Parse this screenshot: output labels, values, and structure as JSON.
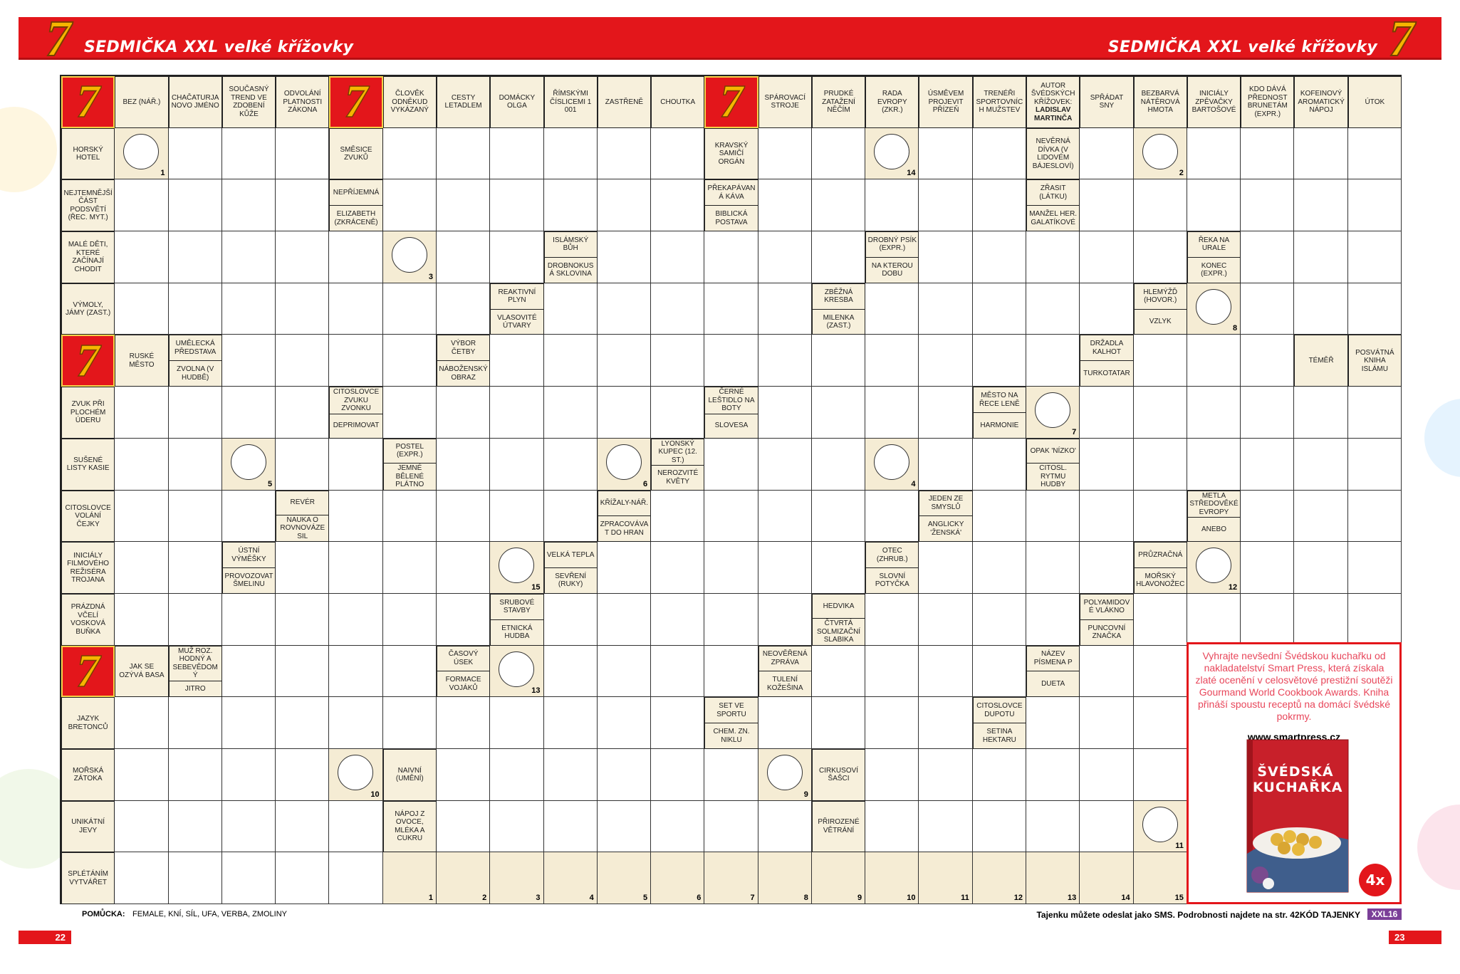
{
  "header": {
    "logo": "7",
    "title": "SEDMIČKA XXL velké křížovky"
  },
  "grid": {
    "rows": [
      [
        {
          "logo": "7"
        },
        {
          "clue": "BEZ (NÁŘ.)"
        },
        {
          "clue": "CHAČATURJANOVO JMÉNO"
        },
        {
          "clue": "SOUČASNÝ TREND VE ZDOBENÍ KŮŽE"
        },
        {
          "clue": "ODVOLÁNÍ PLATNOSTI ZÁKONA"
        },
        {
          "logo": "7"
        },
        {
          "clue": "ČLOVĚK ODNĚKUD VYKÁZANÝ"
        },
        {
          "clue": "CESTY LETADLEM"
        },
        {
          "clue": "DOMÁCKY OLGA"
        },
        {
          "clue": "ŘÍMSKÝMI ČÍSLICEMI 1 001"
        },
        {
          "clue": "ZASTŘENĚ"
        },
        {
          "clue": "CHOUTKA"
        },
        {
          "logo": "7"
        },
        {
          "clue": "SPÁROVACÍ STROJE"
        },
        {
          "clue": "PRUDKÉ ZATAŽENÍ NĚČÍM"
        },
        {
          "clue": "RADA EVROPY (ZKR.)"
        },
        {
          "clue": "ÚSMĚVEM PROJEVIT PŘÍZEŇ"
        },
        {
          "clue": "TRENÉŘI SPORTOVNÍCH MUŽSTEV"
        },
        {
          "clue": "AUTOR ŠVÉDSKÝCH KŘÍŽOVEK:",
          "strong": "LADISLAV MARTINČA"
        },
        {
          "clue": "SPŘÁDAT SNY"
        },
        {
          "clue": "BEZBARVÁ NÁTĚROVÁ HMOTA"
        },
        {
          "clue": "INICIÁLY ZPĚVAČKY BARTOŠOVÉ"
        },
        {
          "clue": "KDO DÁVÁ PŘEDNOST BRUNETÁM (EXPR.)"
        },
        {
          "clue": "KOFEINOVÝ AROMATICKÝ NÁPOJ"
        },
        {
          "clue": "ÚTOK"
        }
      ],
      [
        {
          "clue": "HORSKÝ HOTEL"
        },
        {
          "circle": 1
        },
        null,
        null,
        null,
        {
          "clue": "SMĚSICE ZVUKŮ"
        },
        null,
        null,
        null,
        null,
        null,
        null,
        {
          "clue": "KRAVSKÝ SAMIČÍ ORGÁN"
        },
        null,
        null,
        {
          "circle": 14
        },
        null,
        null,
        {
          "clue": "NEVĚRNÁ DÍVKA (V LIDOVÉM BÁJESLOVÍ)"
        },
        null,
        {
          "circle": 2
        },
        null,
        null,
        null,
        null
      ],
      [
        {
          "clue": "NEJTEMNĚJŠÍ ČÁST PODSVĚTÍ (ŘEC. MYT.)"
        },
        null,
        null,
        null,
        null,
        {
          "clues": [
            "NEPŘÍJEMNÁ",
            "ELIZABETH (ZKRÁCENĚ)"
          ]
        },
        null,
        null,
        null,
        null,
        null,
        null,
        {
          "clues": [
            "PŘEKAPÁVANÁ KÁVA",
            "BIBLICKÁ POSTAVA"
          ]
        },
        null,
        null,
        null,
        null,
        null,
        {
          "clues": [
            "ZŘASIT (LÁTKU)",
            "MANŽEL HER. GALATÍKOVÉ"
          ]
        },
        null,
        null,
        null,
        null,
        null,
        null
      ],
      [
        {
          "clue": "MALÉ DĚTI, KTERÉ ZAČÍNAJÍ CHODIT"
        },
        null,
        null,
        null,
        null,
        null,
        {
          "circle": 3
        },
        null,
        null,
        {
          "clues": [
            "ISLÁMSKÝ BŮH",
            "DROBNOKUSÁ SKLOVINA"
          ]
        },
        null,
        null,
        null,
        null,
        null,
        {
          "clues": [
            "DROBNÝ PSÍK (EXPR.)",
            "NA KTEROU DOBU"
          ]
        },
        null,
        null,
        null,
        null,
        null,
        {
          "clues": [
            "ŘEKA NA URALE",
            "KONEC (EXPR.)"
          ]
        },
        null,
        null,
        null
      ],
      [
        {
          "clue": "VÝMOLY, JÁMY (ZAST.)"
        },
        null,
        null,
        null,
        null,
        null,
        null,
        null,
        {
          "clues": [
            "REAKTIVNÍ PLYN",
            "VLASOVITÉ ÚTVARY"
          ]
        },
        null,
        null,
        null,
        null,
        null,
        {
          "clues": [
            "ZBĚŽNÁ KRESBA",
            "MILENKA (ZAST.)"
          ]
        },
        null,
        null,
        null,
        null,
        null,
        {
          "clues": [
            "HLEMÝŽĎ (HOVOR.)",
            "VZLYK"
          ]
        },
        {
          "circle": 8
        },
        null,
        null,
        null
      ],
      [
        {
          "logo": "7"
        },
        {
          "clue": "RUSKÉ MĚSTO"
        },
        {
          "clues": [
            "UMĚLECKÁ PŘEDSTAVA",
            "ZVOLNA (V HUDBĚ)"
          ]
        },
        null,
        null,
        null,
        null,
        {
          "clues": [
            "VÝBOR ČETBY",
            "NÁBOŽENSKÝ OBRAZ"
          ]
        },
        null,
        null,
        null,
        null,
        null,
        null,
        null,
        null,
        null,
        null,
        null,
        {
          "clues": [
            "DRŽADLA KALHOT",
            "TURKOTATAR"
          ]
        },
        null,
        null,
        null,
        {
          "clue": "TÉMĚŘ"
        },
        {
          "clue": "POSVÁTNÁ KNIHA ISLÁMU"
        }
      ],
      [
        {
          "clue": "ZVUK PŘI PLOCHÉM ÚDERU"
        },
        null,
        null,
        null,
        null,
        {
          "clues": [
            "CITOSLOVCE ZVUKU ZVONKU",
            "DEPRIMOVAT"
          ]
        },
        null,
        null,
        null,
        null,
        null,
        null,
        {
          "clues": [
            "ČERNÉ LEŠTIDLO NA BOTY",
            "SLOVESA"
          ]
        },
        null,
        null,
        null,
        null,
        {
          "clues": [
            "MĚSTO NA ŘECE LENĚ",
            "HARMONIE"
          ]
        },
        {
          "circle": 7
        },
        null,
        null,
        null,
        null,
        null,
        null
      ],
      [
        {
          "clue": "SUŠENÉ LISTY KASIE"
        },
        null,
        null,
        {
          "circle": 5
        },
        null,
        null,
        {
          "clues": [
            "POSTEL (EXPR.)",
            "JEMNÉ BĚLENÉ PLÁTNO"
          ]
        },
        null,
        null,
        null,
        {
          "circle": 6
        },
        {
          "clues": [
            "LYONSKÝ KUPEC (12. ST.)",
            "NEROZVITÉ KVĚTY"
          ]
        },
        null,
        null,
        null,
        {
          "circle": 4
        },
        null,
        null,
        {
          "clues": [
            "OPAK 'NÍZKO'",
            "CITOSL. RYTMU HUDBY"
          ]
        },
        null,
        null,
        null,
        null,
        null,
        null
      ],
      [
        {
          "clue": "CITOSLOVCE VOLÁNÍ ČEJKY"
        },
        null,
        null,
        null,
        {
          "clues": [
            "REVÉR",
            "NAUKA O ROVNOVÁZE SIL"
          ]
        },
        null,
        null,
        null,
        null,
        null,
        {
          "clues": [
            "KŘÍŽALY-NÁŘ.",
            "ZPRACOVÁVAT DO HRAN"
          ]
        },
        null,
        null,
        null,
        null,
        null,
        {
          "clues": [
            "JEDEN ZE SMYSLŮ",
            "ANGLICKY 'ŽENSKÁ'"
          ]
        },
        null,
        null,
        null,
        null,
        {
          "clues": [
            "METLA STŘEDOVĚKÉ EVROPY",
            "ANEBO"
          ]
        },
        null,
        null,
        null
      ],
      [
        {
          "clue": "INICIÁLY FILMOVÉHO REŽISÉRA TROJANA"
        },
        null,
        null,
        {
          "clues": [
            "ÚSTNÍ VÝMĚŠKY",
            "PROVOZOVAT ŠMELINU"
          ]
        },
        null,
        null,
        null,
        null,
        {
          "circle": 15
        },
        {
          "clues": [
            "VELKÁ TEPLA",
            "SEVŘENÍ (RUKY)"
          ]
        },
        null,
        null,
        null,
        null,
        null,
        {
          "clues": [
            "OTEC (ZHRUB.)",
            "SLOVNÍ POTYČKA"
          ]
        },
        null,
        null,
        null,
        null,
        {
          "clues": [
            "PRŮZRAČNÁ",
            "MOŘSKÝ HLAVONOŽEC"
          ]
        },
        {
          "circle": 12
        },
        null,
        null,
        null
      ],
      [
        {
          "clue": "PRÁZDNÁ VČELÍ VOSKOVÁ BUŇKA"
        },
        null,
        null,
        null,
        null,
        null,
        null,
        null,
        {
          "clues": [
            "SRUBOVÉ STAVBY",
            "ETNICKÁ HUDBA"
          ]
        },
        null,
        null,
        null,
        null,
        null,
        {
          "clues": [
            "HEDVIKA",
            "ČTVRTÁ SOLMIZAČNÍ SLABIKA"
          ]
        },
        null,
        null,
        null,
        null,
        {
          "clues": [
            "POLYAMIDOVÉ VLÁKNO",
            "PUNCOVNÍ ZNAČKA"
          ]
        },
        null,
        null,
        null,
        null,
        null
      ],
      [
        {
          "logo": "7"
        },
        {
          "clue": "JAK SE OZÝVÁ BASA"
        },
        {
          "clues": [
            "MUŽ ROZ. HODNÝ A SEBEVĚDOMÝ",
            "JITRO"
          ]
        },
        null,
        null,
        null,
        null,
        {
          "clues": [
            "ČASOVÝ ÚSEK",
            "FORMACE VOJÁKŮ"
          ]
        },
        {
          "circle": 13
        },
        null,
        null,
        null,
        null,
        {
          "clues": [
            "NEOVĚŘENÁ ZPRÁVA",
            "TULENÍ KOŽEŠINA"
          ]
        },
        null,
        null,
        null,
        null,
        {
          "clues": [
            "NÁZEV PÍSMENA P",
            "DUETA"
          ]
        },
        null,
        null,
        null,
        null,
        null,
        null
      ],
      [
        {
          "clue": "JAZYK BRETONCŮ"
        },
        null,
        null,
        null,
        null,
        null,
        null,
        null,
        null,
        null,
        null,
        null,
        {
          "clues": [
            "SET VE SPORTU",
            "CHEM. ZN. NIKLU"
          ]
        },
        null,
        null,
        null,
        null,
        {
          "clues": [
            "CITOSLOVCE DUPOTU",
            "SETINA HEKTARU"
          ]
        },
        null,
        null,
        null,
        null,
        null,
        null,
        null
      ],
      [
        {
          "clue": "MOŘSKÁ ZÁTOKA"
        },
        null,
        null,
        null,
        null,
        {
          "circle": 10
        },
        {
          "clue": "NAIVNÍ (UMĚNÍ)"
        },
        null,
        null,
        null,
        null,
        null,
        null,
        {
          "circle": 9
        },
        {
          "clue": "CIRKUSOVÍ ŠAŠCI"
        },
        null,
        null,
        null,
        null,
        null,
        null,
        null,
        null,
        null,
        null
      ],
      [
        {
          "clue": "UNIKÁTNÍ JEVY"
        },
        null,
        null,
        null,
        null,
        null,
        {
          "clue": "NÁPOJ Z OVOCE, MLÉKA A CUKRU"
        },
        null,
        null,
        null,
        null,
        null,
        null,
        null,
        {
          "clue": "PŘIROZENÉ VĚTRÁNÍ"
        },
        null,
        null,
        null,
        null,
        null,
        {
          "circle": 11
        },
        null,
        null,
        null,
        null
      ],
      [
        {
          "clue": "SPLÉTÁNÍM VYTVÁŘET"
        },
        null,
        null,
        null,
        null,
        null,
        {
          "answer": 1
        },
        {
          "answer": 2
        },
        {
          "answer": 3
        },
        {
          "answer": 4
        },
        {
          "answer": 5
        },
        {
          "answer": 6
        },
        {
          "answer": 7
        },
        {
          "answer": 8
        },
        {
          "answer": 9
        },
        {
          "answer": 10
        },
        {
          "answer": 11
        },
        {
          "answer": 12
        },
        {
          "answer": 13
        },
        {
          "answer": 14
        },
        {
          "answer": 15
        },
        null,
        null,
        null,
        null
      ]
    ]
  },
  "ad": {
    "text": "Vyhrajte nevšední Švédskou kuchařku od nakladatelství Smart Press, která získala zlaté ocenění v celosvětové prestižní soutěži Gourmand World Cookbook Awards. Kniha přináší spoustu receptů na domácí švédské pokrmy.",
    "url": "www.smartpress.cz",
    "book_title": "ŠVÉDSKÁ KUCHAŘKA",
    "badge": "4x"
  },
  "footer": {
    "hint_label": "POMŮCKA:",
    "hint": "FEMALE, KNÍ, SÍL, UFA, VERBA, ZMOLINY",
    "sms": "Tajenku můžete odeslat jako SMS. Podrobnosti najdete na str. 42.",
    "code_label": "KÓD TAJENKY",
    "code": "XXL16",
    "page_left": "22",
    "page_right": "23"
  }
}
